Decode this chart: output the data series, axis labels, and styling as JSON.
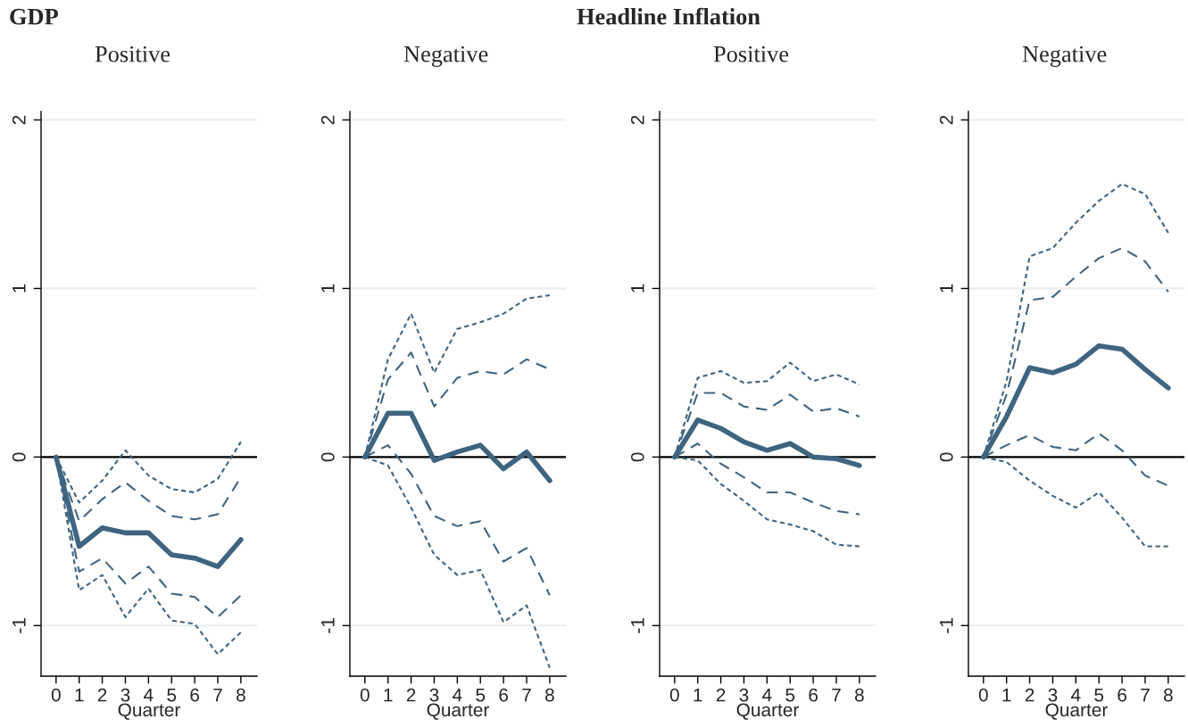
{
  "chart_data": [
    {
      "type": "line",
      "title": "GDP",
      "subtitle": "Positive",
      "xlabel": "Quarter",
      "x": [
        0,
        1,
        2,
        3,
        4,
        5,
        6,
        7,
        8
      ],
      "xlim": [
        -0.65,
        8.7
      ],
      "xticks": [
        0,
        1,
        2,
        3,
        4,
        5,
        6,
        7,
        8
      ],
      "ylim": [
        -1.3,
        2.05
      ],
      "yticks": [
        -1,
        0,
        1,
        2
      ],
      "grid": "y",
      "marker": "none",
      "ref_lines": [
        {
          "axis": "y",
          "value": 0,
          "color": "#000000",
          "line_style": "solid"
        }
      ],
      "series": [
        {
          "color": "#3e6480",
          "line_style": "dotted",
          "values": [
            0,
            -0.27,
            -0.14,
            0.04,
            -0.11,
            -0.19,
            -0.21,
            -0.13,
            0.09
          ]
        },
        {
          "color": "#3e6480",
          "line_style": "dashed",
          "values": [
            0,
            -0.38,
            -0.25,
            -0.15,
            -0.26,
            -0.35,
            -0.37,
            -0.34,
            -0.12
          ]
        },
        {
          "color": "#3e6480",
          "line_style": "solid",
          "values": [
            0,
            -0.53,
            -0.42,
            -0.45,
            -0.45,
            -0.58,
            -0.6,
            -0.65,
            -0.49
          ]
        },
        {
          "color": "#3e6480",
          "line_style": "dashed",
          "values": [
            0,
            -0.68,
            -0.6,
            -0.75,
            -0.65,
            -0.81,
            -0.83,
            -0.95,
            -0.82
          ]
        },
        {
          "color": "#3e6480",
          "line_style": "dotted",
          "values": [
            0,
            -0.79,
            -0.7,
            -0.95,
            -0.78,
            -0.97,
            -0.99,
            -1.17,
            -1.04
          ]
        }
      ]
    },
    {
      "type": "line",
      "subtitle": "Negative",
      "xlabel": "Quarter",
      "x": [
        0,
        1,
        2,
        3,
        4,
        5,
        6,
        7,
        8
      ],
      "xlim": [
        -0.65,
        8.7
      ],
      "xticks": [
        0,
        1,
        2,
        3,
        4,
        5,
        6,
        7,
        8
      ],
      "ylim": [
        -1.3,
        2.05
      ],
      "yticks": [
        -1,
        0,
        1,
        2
      ],
      "grid": "y",
      "marker": "none",
      "ref_lines": [
        {
          "axis": "y",
          "value": 0,
          "color": "#000000",
          "line_style": "solid"
        }
      ],
      "series": [
        {
          "color": "#3e6480",
          "line_style": "dotted",
          "values": [
            0,
            0.58,
            0.85,
            0.5,
            0.76,
            0.8,
            0.85,
            0.94,
            0.96
          ]
        },
        {
          "color": "#3e6480",
          "line_style": "dashed",
          "values": [
            0,
            0.46,
            0.62,
            0.3,
            0.47,
            0.51,
            0.49,
            0.58,
            0.52
          ]
        },
        {
          "color": "#3e6480",
          "line_style": "solid",
          "values": [
            0,
            0.26,
            0.26,
            -0.02,
            0.03,
            0.07,
            -0.07,
            0.03,
            -0.14
          ]
        },
        {
          "color": "#3e6480",
          "line_style": "dashed",
          "values": [
            0,
            0.07,
            -0.1,
            -0.35,
            -0.41,
            -0.38,
            -0.62,
            -0.54,
            -0.82
          ]
        },
        {
          "color": "#3e6480",
          "line_style": "dotted",
          "values": [
            0,
            -0.05,
            -0.3,
            -0.58,
            -0.7,
            -0.67,
            -0.98,
            -0.88,
            -1.25
          ]
        }
      ]
    },
    {
      "type": "line",
      "title": "Headline Inflation",
      "subtitle": "Positive",
      "xlabel": "Quarter",
      "x": [
        0,
        1,
        2,
        3,
        4,
        5,
        6,
        7,
        8
      ],
      "xlim": [
        -0.65,
        8.7
      ],
      "xticks": [
        0,
        1,
        2,
        3,
        4,
        5,
        6,
        7,
        8
      ],
      "ylim": [
        -1.3,
        2.05
      ],
      "yticks": [
        -1,
        0,
        1,
        2
      ],
      "grid": "y",
      "marker": "none",
      "ref_lines": [
        {
          "axis": "y",
          "value": 0,
          "color": "#000000",
          "line_style": "solid"
        }
      ],
      "series": [
        {
          "color": "#3e6480",
          "line_style": "dotted",
          "values": [
            0,
            0.47,
            0.51,
            0.44,
            0.45,
            0.56,
            0.45,
            0.49,
            0.43
          ]
        },
        {
          "color": "#3e6480",
          "line_style": "dashed",
          "values": [
            0,
            0.38,
            0.38,
            0.3,
            0.28,
            0.37,
            0.27,
            0.29,
            0.24
          ]
        },
        {
          "color": "#3e6480",
          "line_style": "solid",
          "values": [
            0,
            0.22,
            0.17,
            0.09,
            0.04,
            0.08,
            0.0,
            -0.01,
            -0.05
          ]
        },
        {
          "color": "#3e6480",
          "line_style": "dashed",
          "values": [
            0,
            0.08,
            -0.04,
            -0.12,
            -0.21,
            -0.21,
            -0.27,
            -0.32,
            -0.34
          ]
        },
        {
          "color": "#3e6480",
          "line_style": "dotted",
          "values": [
            0,
            -0.02,
            -0.16,
            -0.26,
            -0.37,
            -0.4,
            -0.44,
            -0.52,
            -0.53
          ]
        }
      ]
    },
    {
      "type": "line",
      "subtitle": "Negative",
      "xlabel": "Quarter",
      "x": [
        0,
        1,
        2,
        3,
        4,
        5,
        6,
        7,
        8
      ],
      "xlim": [
        -0.65,
        8.7
      ],
      "xticks": [
        0,
        1,
        2,
        3,
        4,
        5,
        6,
        7,
        8
      ],
      "ylim": [
        -1.3,
        2.05
      ],
      "yticks": [
        -1,
        0,
        1,
        2
      ],
      "grid": "y",
      "marker": "none",
      "ref_lines": [
        {
          "axis": "y",
          "value": 0,
          "color": "#000000",
          "line_style": "solid"
        }
      ],
      "series": [
        {
          "color": "#3e6480",
          "line_style": "dotted",
          "values": [
            0,
            0.45,
            1.19,
            1.24,
            1.39,
            1.52,
            1.62,
            1.56,
            1.33
          ]
        },
        {
          "color": "#3e6480",
          "line_style": "dashed",
          "values": [
            0,
            0.37,
            0.93,
            0.95,
            1.07,
            1.18,
            1.24,
            1.16,
            0.98
          ]
        },
        {
          "color": "#3e6480",
          "line_style": "solid",
          "values": [
            0,
            0.24,
            0.53,
            0.5,
            0.55,
            0.66,
            0.64,
            0.52,
            0.41
          ]
        },
        {
          "color": "#3e6480",
          "line_style": "dashed",
          "values": [
            0,
            0.07,
            0.13,
            0.06,
            0.04,
            0.14,
            0.04,
            -0.11,
            -0.17
          ]
        },
        {
          "color": "#3e6480",
          "line_style": "dotted",
          "values": [
            0,
            -0.03,
            -0.14,
            -0.23,
            -0.3,
            -0.21,
            -0.36,
            -0.53,
            -0.53
          ]
        }
      ]
    }
  ]
}
